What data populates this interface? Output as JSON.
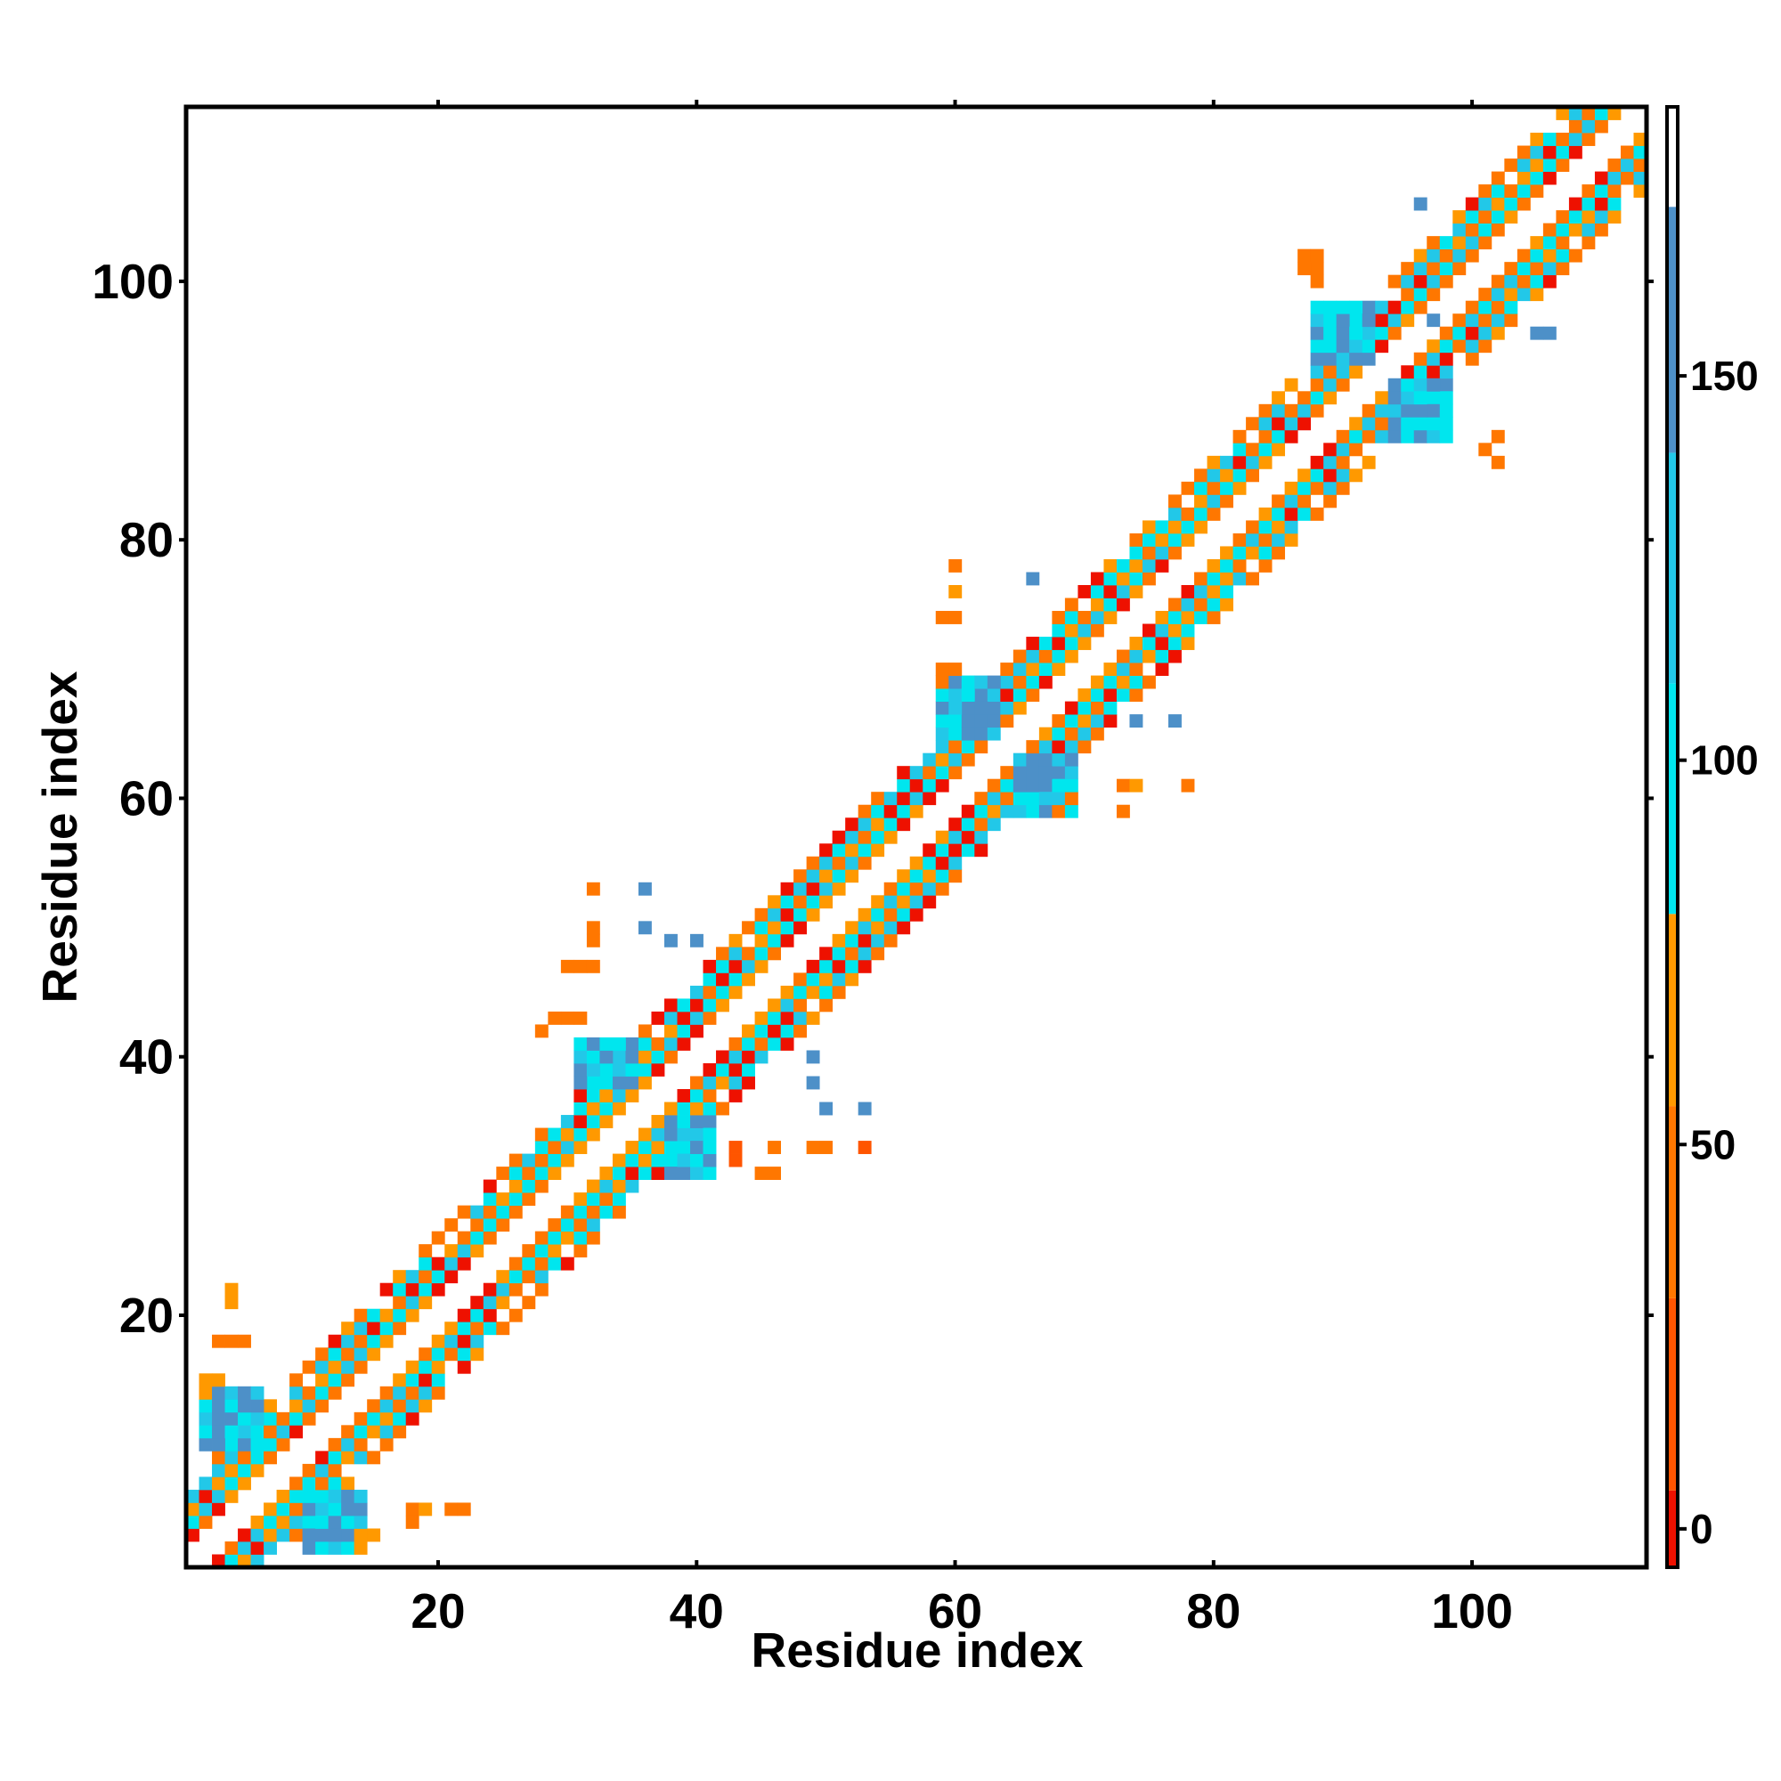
{
  "chart_data": {
    "type": "heatmap",
    "title": "",
    "xlabel": "Residue index",
    "ylabel": "Residue index",
    "xlim": [
      0.5,
      113.5
    ],
    "ylim": [
      0.5,
      113.5
    ],
    "xticks": [
      20,
      40,
      60,
      80,
      100
    ],
    "yticks": [
      20,
      40,
      60,
      80,
      100
    ],
    "xtick_labels": [
      "20",
      "40",
      "60",
      "80",
      "100"
    ],
    "ytick_labels": [
      "20",
      "40",
      "60",
      "80",
      "100"
    ],
    "colorbar": {
      "range": [
        -5,
        185
      ],
      "ticks": [
        0,
        50,
        100,
        150
      ],
      "tick_labels": [
        "0",
        "50",
        "100",
        "150"
      ],
      "bands": [
        {
          "from": -5,
          "to": 5,
          "color": "#ee1100"
        },
        {
          "from": 5,
          "to": 30,
          "color": "#ff5500"
        },
        {
          "from": 30,
          "to": 55,
          "color": "#ff7700"
        },
        {
          "from": 55,
          "to": 80,
          "color": "#ff9900"
        },
        {
          "from": 80,
          "to": 110,
          "color": "#00e6ee"
        },
        {
          "from": 110,
          "to": 140,
          "color": "#22c8e8"
        },
        {
          "from": 140,
          "to": 172,
          "color": "#4d90c8"
        },
        {
          "from": 172,
          "to": 185,
          "color": "#ffffff"
        }
      ]
    },
    "grid": false,
    "legend": "colorbar-right",
    "n_residues": 113,
    "strands": [
      [
        2,
        6
      ],
      [
        10,
        14
      ],
      [
        15,
        28
      ],
      [
        31,
        35
      ],
      [
        38,
        54
      ],
      [
        59,
        63
      ],
      [
        65,
        84
      ],
      [
        88,
        92
      ],
      [
        94,
        113
      ]
    ],
    "hairpins": [
      {
        "a": [
          2,
          6
        ],
        "b": [
          10,
          14
        ],
        "value": 150
      },
      {
        "a": [
          31,
          35
        ],
        "b": [
          38,
          41
        ],
        "value": 150
      },
      {
        "a": [
          59,
          63
        ],
        "b": [
          65,
          69
        ],
        "value": 150
      },
      {
        "a": [
          88,
          92
        ],
        "b": [
          94,
          98
        ],
        "value": 150
      }
    ],
    "sparse_points": [
      [
        4,
        22,
        65
      ],
      [
        4,
        21,
        65
      ],
      [
        3,
        18,
        45
      ],
      [
        4,
        18,
        45
      ],
      [
        5,
        18,
        45
      ],
      [
        2,
        15,
        70
      ],
      [
        3,
        15,
        70
      ],
      [
        2,
        14,
        70
      ],
      [
        18,
        5,
        40
      ],
      [
        18,
        4,
        40
      ],
      [
        19,
        5,
        70
      ],
      [
        21,
        5,
        45
      ],
      [
        22,
        5,
        45
      ],
      [
        14,
        3,
        60
      ],
      [
        15,
        3,
        60
      ],
      [
        14,
        2,
        60
      ],
      [
        32,
        53,
        45
      ],
      [
        32,
        50,
        45
      ],
      [
        32,
        49,
        45
      ],
      [
        31,
        47,
        45
      ],
      [
        32,
        47,
        45
      ],
      [
        30,
        47,
        45
      ],
      [
        36,
        53,
        140
      ],
      [
        36,
        50,
        140
      ],
      [
        38,
        49,
        140
      ],
      [
        40,
        49,
        140
      ],
      [
        30,
        43,
        45
      ],
      [
        31,
        43,
        45
      ],
      [
        29,
        43,
        45
      ],
      [
        28,
        42,
        45
      ],
      [
        49,
        40,
        140
      ],
      [
        49,
        38,
        140
      ],
      [
        50,
        36,
        140
      ],
      [
        53,
        36,
        140
      ],
      [
        43,
        33,
        20
      ],
      [
        43,
        32,
        20
      ],
      [
        46,
        33,
        45
      ],
      [
        45,
        31,
        45
      ],
      [
        46,
        31,
        45
      ],
      [
        49,
        33,
        45
      ],
      [
        50,
        33,
        45
      ],
      [
        53,
        33,
        20
      ],
      [
        60,
        78,
        45
      ],
      [
        60,
        76,
        55
      ],
      [
        59,
        74,
        45
      ],
      [
        60,
        74,
        45
      ],
      [
        66,
        77,
        140
      ],
      [
        59,
        70,
        45
      ],
      [
        60,
        70,
        45
      ],
      [
        59,
        69,
        45
      ],
      [
        77,
        66,
        140
      ],
      [
        74,
        66,
        140
      ],
      [
        69,
        60,
        45
      ],
      [
        68,
        59,
        45
      ],
      [
        73,
        61,
        45
      ],
      [
        73,
        59,
        45
      ],
      [
        74,
        61,
        55
      ],
      [
        78,
        61,
        45
      ],
      [
        87,
        102,
        45
      ],
      [
        88,
        102,
        45
      ],
      [
        88,
        101,
        45
      ],
      [
        87,
        101,
        45
      ],
      [
        88,
        100,
        45
      ],
      [
        96,
        106,
        140
      ],
      [
        97,
        97,
        140
      ],
      [
        106,
        96,
        140
      ],
      [
        105,
        96,
        140
      ],
      [
        101,
        87,
        45
      ],
      [
        102,
        88,
        45
      ],
      [
        102,
        86,
        45
      ]
    ]
  }
}
